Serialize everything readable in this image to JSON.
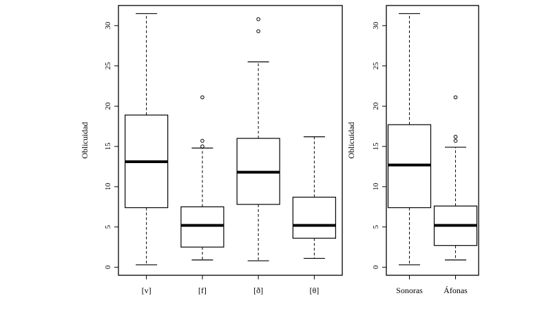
{
  "chart_data": [
    {
      "type": "box",
      "ylabel": "Oblicuidad",
      "ylim": [
        -1,
        32.5
      ],
      "yticks": [
        0,
        5,
        10,
        15,
        20,
        25,
        30
      ],
      "categories": [
        "[v]",
        "[f]",
        "[ð]",
        "[θ]"
      ],
      "boxes": [
        {
          "min": 0.3,
          "q1": 7.4,
          "median": 13.1,
          "q3": 18.9,
          "max": 31.5,
          "outliers": []
        },
        {
          "min": 0.9,
          "q1": 2.5,
          "median": 5.2,
          "q3": 7.5,
          "max": 14.8,
          "outliers": [
            15.0,
            15.7,
            21.1
          ]
        },
        {
          "min": 0.8,
          "q1": 7.8,
          "median": 11.8,
          "q3": 16.0,
          "max": 25.5,
          "outliers": [
            29.3,
            30.8
          ]
        },
        {
          "min": 1.1,
          "q1": 3.6,
          "median": 5.2,
          "q3": 8.7,
          "max": 16.2,
          "outliers": []
        }
      ]
    },
    {
      "type": "box",
      "ylabel": "Oblicuidad",
      "ylim": [
        -1,
        32.5
      ],
      "yticks": [
        0,
        5,
        10,
        15,
        20,
        25,
        30
      ],
      "categories": [
        "Sonoras",
        "Áfonas"
      ],
      "boxes": [
        {
          "min": 0.3,
          "q1": 7.4,
          "median": 12.7,
          "q3": 17.7,
          "max": 31.5,
          "outliers": []
        },
        {
          "min": 0.9,
          "q1": 2.7,
          "median": 5.2,
          "q3": 7.6,
          "max": 14.9,
          "outliers": [
            15.7,
            16.2,
            21.1
          ]
        }
      ]
    }
  ]
}
